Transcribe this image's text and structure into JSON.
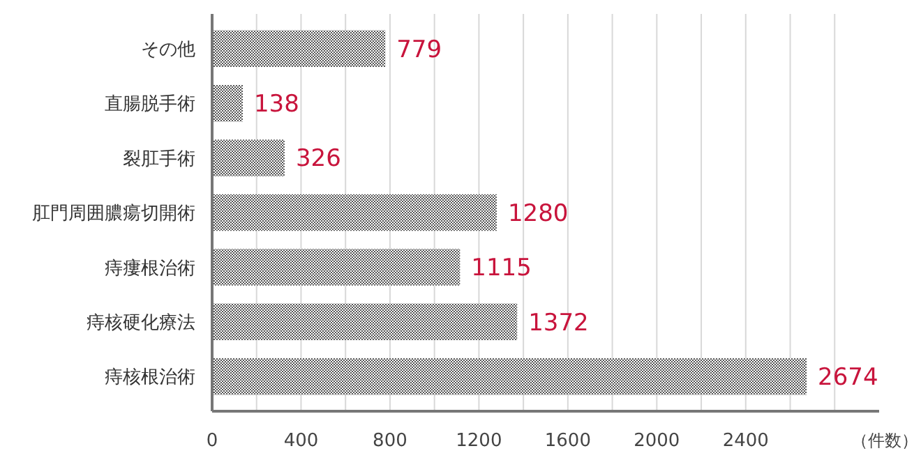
{
  "chart_data": {
    "type": "bar",
    "orientation": "horizontal",
    "categories": [
      "その他",
      "直腸脱手術",
      "裂肛手術",
      "肛門周囲膿瘍切開術",
      "痔瘻根治術",
      "痔核硬化療法",
      "痔核根治術"
    ],
    "values": [
      779,
      138,
      326,
      1280,
      1115,
      1372,
      2674
    ],
    "color": "#555555",
    "xlabel": "（件数）",
    "xlim": [
      0,
      3000
    ],
    "xticks": [
      0,
      {
        "value": 200,
        "label": null
      },
      400,
      {
        "value": 600,
        "label": null
      },
      800,
      {
        "value": 1000,
        "label": null
      },
      1200,
      {
        "value": 1400,
        "label": null
      },
      1600,
      {
        "value": 1800,
        "label": null
      },
      2000,
      {
        "value": 2200,
        "label": null
      },
      2400,
      {
        "value": 2600,
        "label": null
      },
      {
        "value": 2800,
        "label": null
      }
    ],
    "grid": "x",
    "data_labels": true
  }
}
